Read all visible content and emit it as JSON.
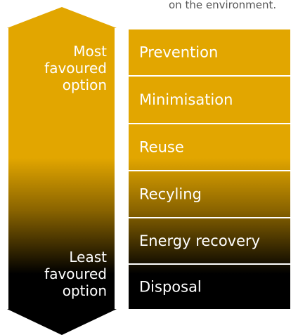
{
  "caption": "on the environment.",
  "arrow": {
    "top_label": [
      "Most",
      "favoured",
      "option"
    ],
    "bottom_label": [
      "Least",
      "favoured",
      "option"
    ]
  },
  "levels": [
    "Prevention",
    "Minimisation",
    "Reuse",
    "Recyling",
    "Energy recovery",
    "Disposal"
  ]
}
